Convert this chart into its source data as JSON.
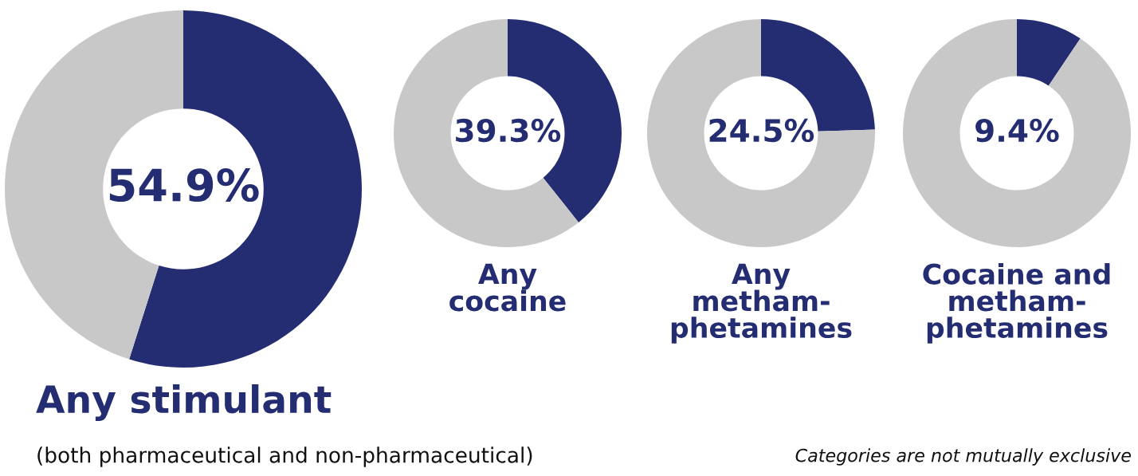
{
  "chart_data": [
    {
      "type": "donut",
      "title": "Any stimulant",
      "subtitle": "(both pharmaceutical and non-pharmaceutical)",
      "categories": [
        null,
        null
      ],
      "values": [
        54.9,
        45.1
      ],
      "colors": [
        "#252d72",
        "#c8c8c8"
      ],
      "value_labels": [
        "54.9%",
        null
      ]
    },
    {
      "type": "donut",
      "title": "Any\ncocaine",
      "categories": [
        null,
        null
      ],
      "values": [
        39.3,
        60.7
      ],
      "colors": [
        "#252d72",
        "#c8c8c8"
      ],
      "value_labels": [
        "39.3%",
        null
      ]
    },
    {
      "type": "donut",
      "title": "Any\nmetham-\nphetamines",
      "categories": [
        null,
        null
      ],
      "values": [
        24.5,
        75.5
      ],
      "colors": [
        "#252d72",
        "#c8c8c8"
      ],
      "value_labels": [
        "24.5%",
        null
      ]
    },
    {
      "type": "donut",
      "title": "Cocaine and\nmetham-\nphetamines",
      "categories": [
        null,
        null
      ],
      "values": [
        9.4,
        90.6
      ],
      "colors": [
        "#252d72",
        "#c8c8c8"
      ],
      "value_labels": [
        "9.4%",
        null
      ],
      "annotations": [
        "Categories are not mutually exclusive"
      ]
    }
  ]
}
